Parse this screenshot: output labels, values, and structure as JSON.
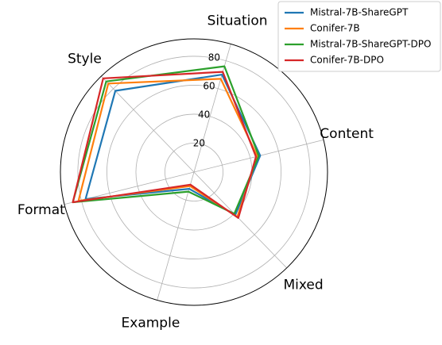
{
  "chart_data": {
    "type": "radar",
    "categories": [
      "Content",
      "Situation",
      "Style",
      "Format",
      "Example",
      "Mixed"
    ],
    "series": [
      {
        "name": "Mistral-7B-ShareGPT",
        "color": "#1f77b4",
        "values": [
          47,
          70,
          78,
          77,
          12,
          41
        ]
      },
      {
        "name": "Conifer-7B",
        "color": "#ff7f0e",
        "values": [
          45,
          67,
          85,
          82,
          10,
          43
        ]
      },
      {
        "name": "Mistral-7B-ShareGPT-DPO",
        "color": "#2ca02c",
        "values": [
          46,
          76,
          87,
          86,
          14,
          40
        ]
      },
      {
        "name": "Conifer-7B-DPO",
        "color": "#d62728",
        "values": [
          44,
          72,
          90,
          86,
          9,
          44
        ]
      }
    ],
    "ylim": [
      0,
      92
    ],
    "yticks": [
      20,
      40,
      60,
      80
    ],
    "grid": true,
    "legend": "upper right"
  }
}
